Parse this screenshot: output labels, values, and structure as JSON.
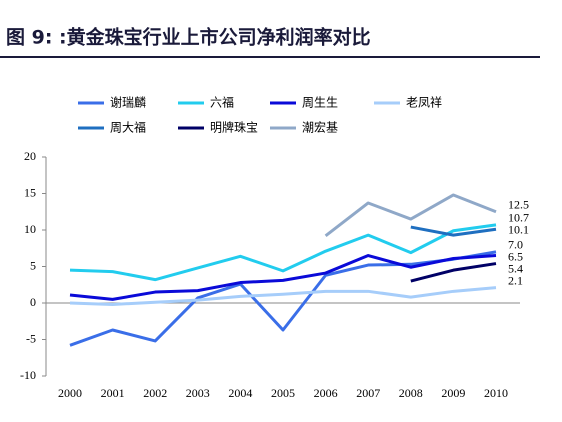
{
  "chart_data": {
    "type": "line",
    "title": "图 9:  :黄金珠宝行业上市公司净利润率对比",
    "categories": [
      "2000",
      "2001",
      "2002",
      "2003",
      "2004",
      "2005",
      "2006",
      "2007",
      "2008",
      "2009",
      "2010"
    ],
    "ylim": [
      -10,
      20
    ],
    "yticks": [
      -10,
      -5,
      0,
      5,
      10,
      15,
      20
    ],
    "series": [
      {
        "name": "谢瑞麟",
        "color": "#3a6ee8",
        "values": [
          -5.8,
          -3.7,
          -5.2,
          0.7,
          2.6,
          -3.7,
          3.8,
          5.2,
          5.3,
          6.0,
          7.0
        ],
        "value_labels": [
          null,
          null,
          null,
          null,
          null,
          null,
          null,
          null,
          null,
          null,
          "7.0"
        ]
      },
      {
        "name": "六福",
        "color": "#22ccee",
        "values": [
          4.5,
          4.3,
          3.2,
          4.8,
          6.4,
          4.4,
          7.1,
          9.3,
          6.9,
          9.9,
          10.7
        ],
        "value_labels": [
          null,
          null,
          null,
          null,
          null,
          null,
          null,
          null,
          null,
          null,
          "10.7"
        ]
      },
      {
        "name": "周生生",
        "color": "#0a0ad8",
        "values": [
          1.1,
          0.5,
          1.5,
          1.7,
          2.8,
          3.1,
          4.1,
          6.5,
          4.9,
          6.1,
          6.5
        ],
        "value_labels": [
          null,
          null,
          null,
          null,
          null,
          null,
          null,
          null,
          null,
          null,
          "6.5"
        ]
      },
      {
        "name": "老凤祥",
        "color": "#a6cdfa",
        "values": [
          0.0,
          -0.2,
          0.1,
          0.4,
          0.9,
          1.2,
          1.6,
          1.6,
          0.8,
          1.6,
          2.1
        ],
        "value_labels": [
          null,
          null,
          null,
          null,
          null,
          null,
          null,
          null,
          null,
          null,
          "2.1"
        ]
      },
      {
        "name": "周大福",
        "color": "#1f6fc0",
        "values": [
          null,
          null,
          null,
          null,
          null,
          null,
          null,
          null,
          10.4,
          9.3,
          10.1
        ],
        "value_labels": [
          null,
          null,
          null,
          null,
          null,
          null,
          null,
          null,
          null,
          null,
          "10.1"
        ]
      },
      {
        "name": "明牌珠宝",
        "color": "#000066",
        "values": [
          null,
          null,
          null,
          null,
          null,
          null,
          null,
          null,
          3.0,
          4.5,
          5.4
        ],
        "value_labels": [
          null,
          null,
          null,
          null,
          null,
          null,
          null,
          null,
          null,
          null,
          "5.4"
        ]
      },
      {
        "name": "潮宏基",
        "color": "#8fa8c8",
        "values": [
          null,
          null,
          null,
          null,
          null,
          null,
          9.2,
          13.7,
          11.5,
          14.8,
          12.5
        ],
        "value_labels": [
          null,
          null,
          null,
          null,
          null,
          null,
          null,
          null,
          null,
          null,
          "12.5"
        ]
      }
    ]
  }
}
